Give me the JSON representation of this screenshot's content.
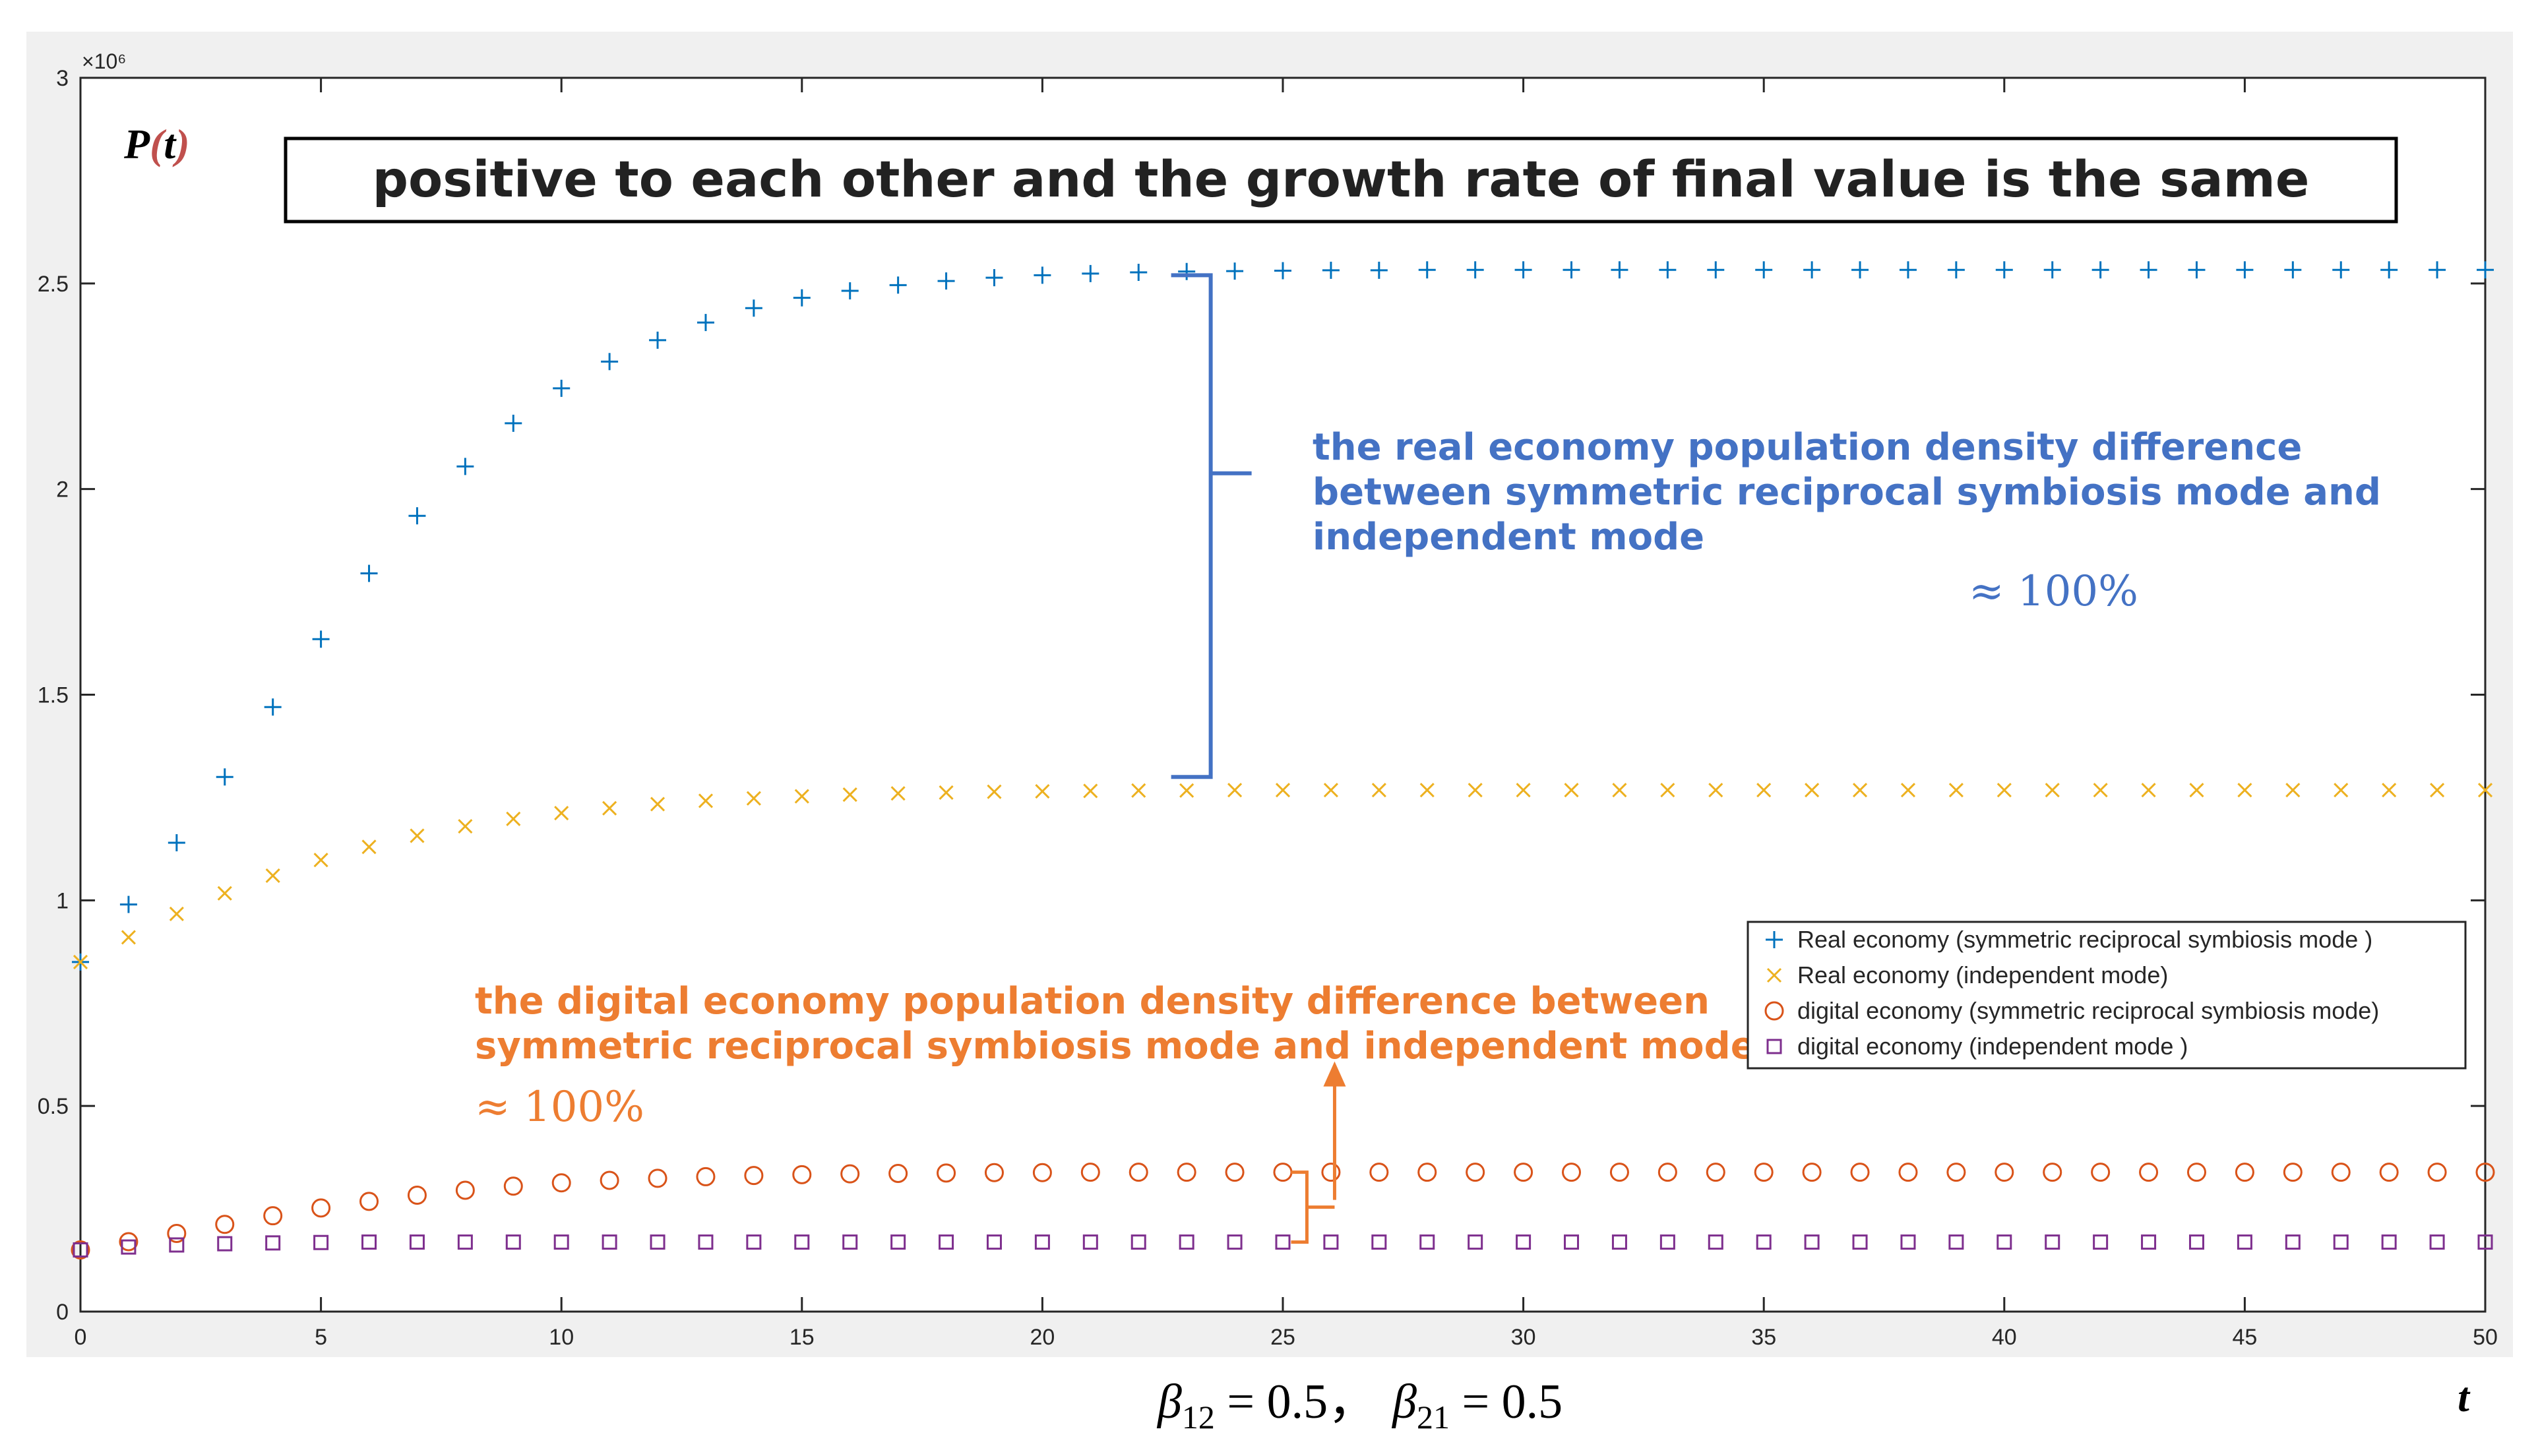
{
  "chart_data": {
    "type": "scatter",
    "title": "positive to each other and the growth rate of final value is the same",
    "ylabel": "P(t)",
    "xlabel": "t",
    "xlim": [
      0,
      50
    ],
    "ylim": [
      0,
      3000000
    ],
    "x_ticks": [
      0,
      5,
      10,
      15,
      20,
      25,
      30,
      35,
      40,
      45,
      50
    ],
    "y_ticks": [
      0,
      0.5,
      1,
      1.5,
      2,
      2.5,
      3
    ],
    "y_tick_labels": [
      "0",
      "0.5",
      "1",
      "1.5",
      "2",
      "2.5",
      "3"
    ],
    "y_exponent_label": "×10⁶",
    "grid": false,
    "legend_location": "lower-right",
    "x": [
      0,
      1,
      2,
      3,
      4,
      5,
      6,
      7,
      8,
      9,
      10,
      11,
      12,
      13,
      14,
      15,
      16,
      17,
      18,
      19,
      20,
      21,
      22,
      23,
      24,
      25,
      26,
      27,
      28,
      29,
      30,
      31,
      32,
      33,
      34,
      35,
      36,
      37,
      38,
      39,
      40,
      41,
      42,
      43,
      44,
      45,
      46,
      47,
      48,
      49,
      50
    ],
    "series": [
      {
        "name": "Real economy (symmetric reciprocal symbiosis mode )",
        "marker": "+",
        "color": "#0072BD",
        "values": [
          850000,
          990000,
          1140000,
          1300000,
          1470000,
          1635000,
          1795000,
          1935000,
          2055000,
          2160000,
          2245000,
          2310000,
          2362000,
          2405000,
          2440000,
          2465000,
          2482000,
          2496000,
          2506000,
          2514000,
          2520000,
          2524000,
          2527000,
          2529000,
          2530000,
          2531000,
          2532000,
          2532000,
          2533000,
          2533000,
          2533000,
          2533000,
          2533000,
          2533000,
          2533000,
          2533000,
          2533000,
          2533000,
          2533000,
          2533000,
          2533000,
          2533000,
          2533000,
          2533000,
          2533000,
          2533000,
          2533000,
          2533000,
          2533000,
          2533000,
          2533000
        ]
      },
      {
        "name": "Real economy (independent mode)",
        "marker": "x",
        "color": "#EDB120",
        "values": [
          850000,
          910000,
          967000,
          1017000,
          1060000,
          1098000,
          1130000,
          1157000,
          1180000,
          1198000,
          1212000,
          1224000,
          1234000,
          1242000,
          1248000,
          1253000,
          1257000,
          1260000,
          1262000,
          1264000,
          1265000,
          1266000,
          1267000,
          1267000,
          1268000,
          1268000,
          1268000,
          1268000,
          1268000,
          1268000,
          1268000,
          1268000,
          1268000,
          1268000,
          1268000,
          1268000,
          1268000,
          1268000,
          1268000,
          1268000,
          1268000,
          1268000,
          1268000,
          1268000,
          1268000,
          1268000,
          1268000,
          1268000,
          1268000,
          1268000,
          1268000
        ]
      },
      {
        "name": "digital economy (symmetric reciprocal symbiosis mode)",
        "marker": "o",
        "color": "#D95319",
        "values": [
          150000,
          170000,
          190000,
          212000,
          233000,
          252000,
          268000,
          283000,
          295000,
          305000,
          313000,
          319000,
          324000,
          328000,
          331000,
          333000,
          335000,
          336000,
          337000,
          338000,
          338000,
          339000,
          339000,
          339000,
          339000,
          339000,
          339000,
          339000,
          339000,
          339000,
          339000,
          339000,
          339000,
          339000,
          339000,
          339000,
          339000,
          339000,
          339000,
          339000,
          339000,
          339000,
          339000,
          339000,
          339000,
          339000,
          339000,
          339000,
          339000,
          339000,
          339000
        ]
      },
      {
        "name": "digital economy (independent mode )",
        "marker": "square",
        "color": "#7E2F8E",
        "values": [
          150000,
          157000,
          162000,
          165000,
          167000,
          168000,
          169000,
          169000,
          169000,
          169000,
          169000,
          169000,
          169000,
          169000,
          169000,
          169000,
          169000,
          169000,
          169000,
          169000,
          169000,
          169000,
          169000,
          169000,
          169000,
          169000,
          169000,
          169000,
          169000,
          169000,
          169000,
          169000,
          169000,
          169000,
          169000,
          169000,
          169000,
          169000,
          169000,
          169000,
          169000,
          169000,
          169000,
          169000,
          169000,
          169000,
          169000,
          169000,
          169000,
          169000,
          169000
        ]
      }
    ],
    "annotations": {
      "blue_lines": [
        "the real economy population density difference",
        "between symmetric reciprocal symbiosis mode and",
        "independent mode"
      ],
      "blue_approx": "≈ 100%",
      "orange_lines": [
        "the digital economy population density difference between",
        "symmetric reciprocal symbiosis mode and independent mode"
      ],
      "orange_approx": "≈ 100%",
      "blue_bracket": {
        "x": 23.5,
        "y_top": 2520000,
        "y_bottom": 1300000
      },
      "orange_bracket": {
        "x": 25.5,
        "y_top": 339000,
        "y_bottom": 169000
      }
    },
    "bottom_label": {
      "beta12": "β",
      "beta12_sub": "12",
      "beta12_rhs": " = 0.5，",
      "beta21": "β",
      "beta21_sub": "21",
      "beta21_rhs": " = 0.5"
    },
    "colors": {
      "ann_blue": "#4472c4",
      "ann_orange": "#ed7d31"
    }
  }
}
